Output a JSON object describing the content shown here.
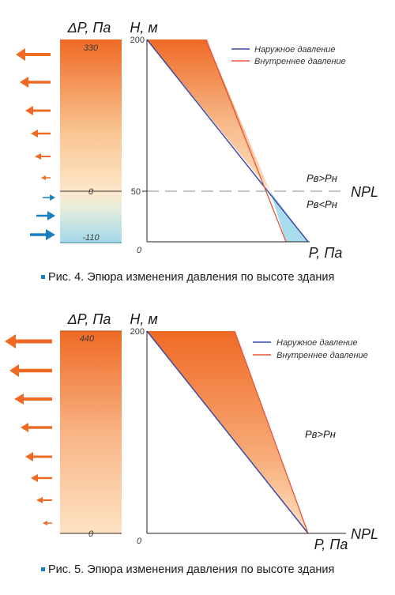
{
  "colors": {
    "orange_dark": "#ef6a25",
    "orange_light": "#fde2c2",
    "blue_light": "#a9dcec",
    "blue_arrow": "#1a7fc1",
    "line_outer": "#3a4aa6",
    "line_inner": "#e8533a"
  },
  "figures": [
    {
      "caption": "Рис. 4. Эпюра изменения давления по высоте здания",
      "dp_label": "ΔP, Па",
      "h_label": "H, м",
      "p_label": "P, Па",
      "origin_label": "0",
      "dp_values": {
        "top": "330",
        "zero": "0",
        "bottom": "-110"
      },
      "h_ticks": {
        "top": "200",
        "mid": "50"
      },
      "npl_label": "NPL",
      "region_upper": "Pв>Pн",
      "region_lower": "Pв<Pн",
      "legend": {
        "outer": "Наружное давление",
        "inner": "Внутреннее давление"
      },
      "arrows": {
        "outward_strengths": [
          1.0,
          0.85,
          0.7,
          0.55,
          0.4,
          0.25
        ],
        "inward_strengths": [
          0.3,
          0.5,
          0.7
        ]
      }
    },
    {
      "caption": "Рис. 5. Эпюра изменения давления по высоте здания",
      "dp_label": "ΔP, Па",
      "h_label": "H, м",
      "p_label": "P, Па",
      "origin_label": "0",
      "dp_values": {
        "top": "440",
        "zero": "0"
      },
      "h_ticks": {
        "top": "200"
      },
      "npl_label": "NPL",
      "region_upper": "Pв>Pн",
      "legend": {
        "outer": "Наружное давление",
        "inner": "Внутреннее давление"
      },
      "arrows": {
        "outward_strengths": [
          1.0,
          0.9,
          0.8,
          0.68,
          0.56,
          0.44,
          0.32,
          0.2
        ]
      }
    }
  ]
}
